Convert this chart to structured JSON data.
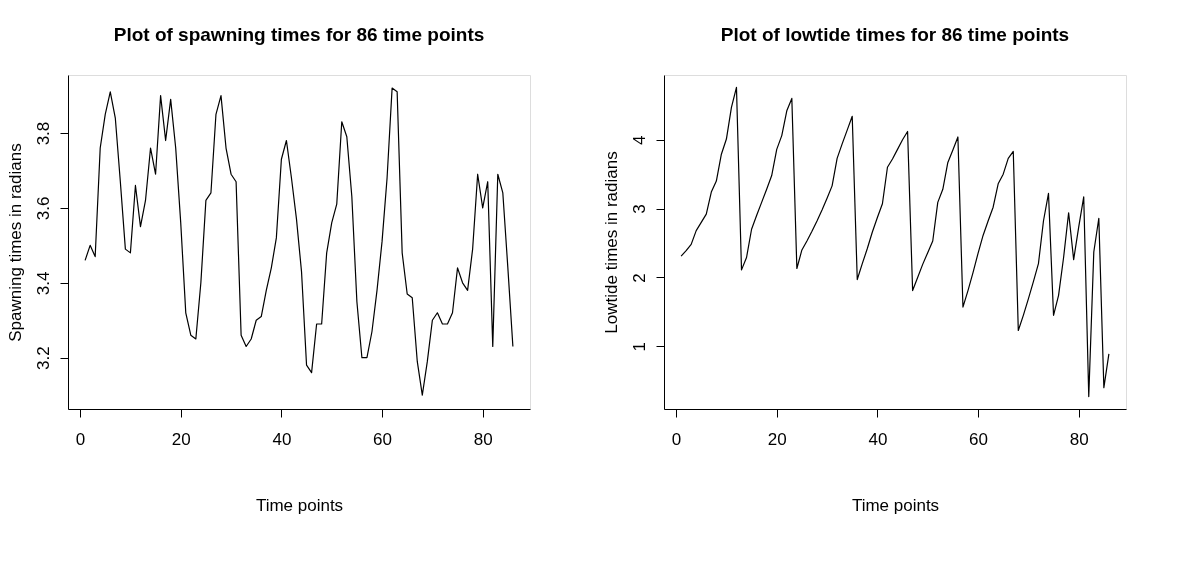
{
  "chart_data": [
    {
      "type": "line",
      "title": "Plot of spawning times for 86 time points",
      "xlabel": "Time points",
      "ylabel": "Spawning times in radians",
      "x": [
        1,
        2,
        3,
        4,
        5,
        6,
        7,
        8,
        9,
        10,
        11,
        12,
        13,
        14,
        15,
        16,
        17,
        18,
        19,
        20,
        21,
        22,
        23,
        24,
        25,
        26,
        27,
        28,
        29,
        30,
        31,
        32,
        33,
        34,
        35,
        36,
        37,
        38,
        39,
        40,
        41,
        42,
        43,
        44,
        45,
        46,
        47,
        48,
        49,
        50,
        51,
        52,
        53,
        54,
        55,
        56,
        57,
        58,
        59,
        60,
        61,
        62,
        63,
        64,
        65,
        66,
        67,
        68,
        69,
        70,
        71,
        72,
        73,
        74,
        75,
        76,
        77,
        78,
        79,
        80,
        81,
        82,
        83,
        84,
        85,
        86
      ],
      "series": [
        {
          "color": "#000000",
          "values": [
            3.46,
            3.5,
            3.47,
            3.76,
            3.85,
            3.91,
            3.84,
            3.67,
            3.49,
            3.48,
            3.66,
            3.55,
            3.62,
            3.76,
            3.69,
            3.9,
            3.78,
            3.89,
            3.76,
            3.56,
            3.32,
            3.26,
            3.25,
            3.4,
            3.62,
            3.64,
            3.85,
            3.9,
            3.76,
            3.69,
            3.67,
            3.26,
            3.23,
            3.25,
            3.3,
            3.31,
            3.38,
            3.44,
            3.52,
            3.73,
            3.78,
            3.68,
            3.57,
            3.43,
            3.18,
            3.16,
            3.29,
            3.29,
            3.48,
            3.56,
            3.61,
            3.83,
            3.79,
            3.63,
            3.35,
            3.2,
            3.2,
            3.27,
            3.38,
            3.51,
            3.68,
            3.92,
            3.91,
            3.48,
            3.37,
            3.36,
            3.19,
            3.1,
            3.19,
            3.3,
            3.32,
            3.29,
            3.29,
            3.32,
            3.44,
            3.4,
            3.38,
            3.49,
            3.69,
            3.6,
            3.67,
            3.23,
            3.69,
            3.64,
            3.44,
            3.23
          ]
        }
      ],
      "xlim": [
        -2.4,
        89.4
      ],
      "ylim": [
        3.063,
        3.955
      ],
      "xticks": [
        0,
        20,
        40,
        60,
        80
      ],
      "yticks": [
        3.2,
        3.4,
        3.6,
        3.8
      ],
      "grid": false,
      "line_style": "solid"
    },
    {
      "type": "line",
      "title": "Plot of lowtide times for 86 time points",
      "xlabel": "Time points",
      "ylabel": "Lowtide times in radians",
      "x": [
        1,
        2,
        3,
        4,
        5,
        6,
        7,
        8,
        9,
        10,
        11,
        12,
        13,
        14,
        15,
        16,
        17,
        18,
        19,
        20,
        21,
        22,
        23,
        24,
        25,
        26,
        27,
        28,
        29,
        30,
        31,
        32,
        33,
        34,
        35,
        36,
        37,
        38,
        39,
        40,
        41,
        42,
        43,
        44,
        45,
        46,
        47,
        48,
        49,
        50,
        51,
        52,
        53,
        54,
        55,
        56,
        57,
        58,
        59,
        60,
        61,
        62,
        63,
        64,
        65,
        66,
        67,
        68,
        69,
        70,
        71,
        72,
        73,
        74,
        75,
        76,
        77,
        78,
        79,
        80,
        81,
        82,
        83,
        84,
        85,
        86
      ],
      "series": [
        {
          "color": "#000000",
          "values": [
            2.31,
            2.39,
            2.48,
            2.68,
            2.8,
            2.92,
            3.24,
            3.4,
            3.79,
            4.01,
            4.47,
            4.76,
            2.11,
            2.29,
            2.7,
            2.9,
            3.09,
            3.28,
            3.48,
            3.86,
            4.06,
            4.42,
            4.6,
            2.13,
            2.4,
            2.53,
            2.67,
            2.82,
            2.98,
            3.15,
            3.33,
            3.73,
            3.94,
            4.14,
            4.34,
            1.97,
            2.2,
            2.42,
            2.66,
            2.87,
            3.07,
            3.6,
            3.72,
            3.86,
            4.0,
            4.12,
            1.81,
            2.0,
            2.19,
            2.36,
            2.53,
            3.09,
            3.28,
            3.67,
            3.85,
            4.04,
            1.57,
            1.81,
            2.07,
            2.35,
            2.61,
            2.82,
            3.02,
            3.36,
            3.5,
            3.73,
            3.83,
            1.23,
            1.45,
            1.69,
            1.94,
            2.2,
            2.82,
            3.22,
            1.45,
            1.74,
            2.29,
            2.94,
            2.26,
            2.73,
            3.17,
            0.27,
            2.37,
            2.86,
            0.4,
            0.89
          ]
        }
      ],
      "xlim": [
        -2.4,
        89.4
      ],
      "ylim": [
        0.09,
        4.94
      ],
      "xticks": [
        0,
        20,
        40,
        60,
        80
      ],
      "yticks": [
        1,
        2,
        3,
        4
      ],
      "grid": false,
      "line_style": "solid"
    }
  ]
}
